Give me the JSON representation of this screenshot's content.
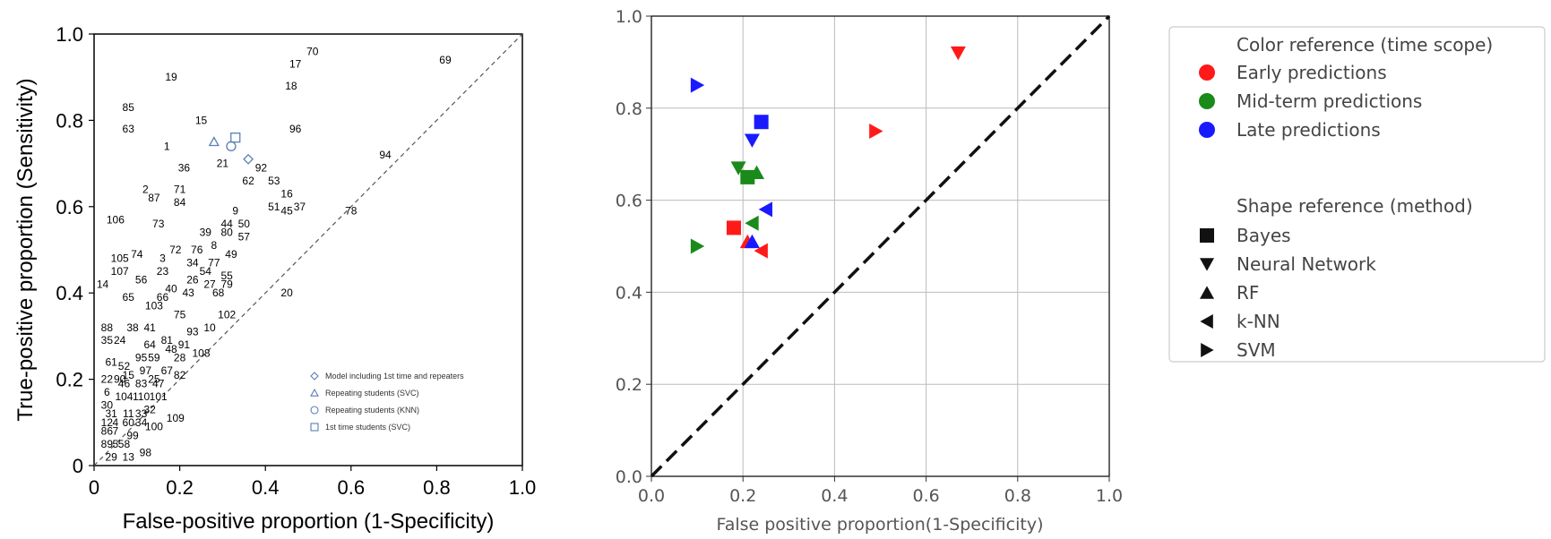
{
  "chart_data": [
    {
      "type": "scatter",
      "title": "",
      "xlabel": "False-positive proportion (1-Specificity)",
      "ylabel": "True-positive proportion (Sensitivity)",
      "xlim": [
        0,
        1.0
      ],
      "ylim": [
        0,
        1.0
      ],
      "xticks": [
        "0",
        "0.2",
        "0.4",
        "0.6",
        "0.8",
        "1.0"
      ],
      "yticks": [
        "0",
        "0.2",
        "0.4",
        "0.6",
        "0.8",
        "1.0"
      ],
      "grid": false,
      "diagonal": "dashed",
      "labeled_points": [
        {
          "label": "70",
          "x": 0.51,
          "y": 0.96
        },
        {
          "label": "17",
          "x": 0.47,
          "y": 0.93
        },
        {
          "label": "69",
          "x": 0.82,
          "y": 0.94
        },
        {
          "label": "19",
          "x": 0.18,
          "y": 0.9
        },
        {
          "label": "18",
          "x": 0.46,
          "y": 0.88
        },
        {
          "label": "85",
          "x": 0.08,
          "y": 0.83
        },
        {
          "label": "15",
          "x": 0.25,
          "y": 0.8
        },
        {
          "label": "63",
          "x": 0.08,
          "y": 0.78
        },
        {
          "label": "96",
          "x": 0.47,
          "y": 0.78
        },
        {
          "label": "1",
          "x": 0.17,
          "y": 0.74
        },
        {
          "label": "94",
          "x": 0.68,
          "y": 0.72
        },
        {
          "label": "21",
          "x": 0.3,
          "y": 0.7
        },
        {
          "label": "36",
          "x": 0.21,
          "y": 0.69
        },
        {
          "label": "92",
          "x": 0.39,
          "y": 0.69
        },
        {
          "label": "62",
          "x": 0.36,
          "y": 0.66
        },
        {
          "label": "53",
          "x": 0.42,
          "y": 0.66
        },
        {
          "label": "2",
          "x": 0.12,
          "y": 0.64
        },
        {
          "label": "87",
          "x": 0.14,
          "y": 0.62
        },
        {
          "label": "71",
          "x": 0.2,
          "y": 0.64
        },
        {
          "label": "16",
          "x": 0.45,
          "y": 0.63
        },
        {
          "label": "84",
          "x": 0.2,
          "y": 0.61
        },
        {
          "label": "51",
          "x": 0.42,
          "y": 0.6
        },
        {
          "label": "45",
          "x": 0.45,
          "y": 0.59
        },
        {
          "label": "37",
          "x": 0.48,
          "y": 0.6
        },
        {
          "label": "78",
          "x": 0.6,
          "y": 0.59
        },
        {
          "label": "9",
          "x": 0.33,
          "y": 0.59
        },
        {
          "label": "106",
          "x": 0.05,
          "y": 0.57
        },
        {
          "label": "44",
          "x": 0.31,
          "y": 0.56
        },
        {
          "label": "50",
          "x": 0.35,
          "y": 0.56
        },
        {
          "label": "73",
          "x": 0.15,
          "y": 0.56
        },
        {
          "label": "39",
          "x": 0.26,
          "y": 0.54
        },
        {
          "label": "80",
          "x": 0.31,
          "y": 0.54
        },
        {
          "label": "57",
          "x": 0.35,
          "y": 0.53
        },
        {
          "label": "72",
          "x": 0.19,
          "y": 0.5
        },
        {
          "label": "76",
          "x": 0.24,
          "y": 0.5
        },
        {
          "label": "8",
          "x": 0.28,
          "y": 0.51
        },
        {
          "label": "49",
          "x": 0.32,
          "y": 0.49
        },
        {
          "label": "105",
          "x": 0.06,
          "y": 0.48
        },
        {
          "label": "74",
          "x": 0.1,
          "y": 0.49
        },
        {
          "label": "3",
          "x": 0.16,
          "y": 0.48
        },
        {
          "label": "34",
          "x": 0.23,
          "y": 0.47
        },
        {
          "label": "77",
          "x": 0.28,
          "y": 0.47
        },
        {
          "label": "107",
          "x": 0.06,
          "y": 0.45
        },
        {
          "label": "23",
          "x": 0.16,
          "y": 0.45
        },
        {
          "label": "54",
          "x": 0.26,
          "y": 0.45
        },
        {
          "label": "55",
          "x": 0.31,
          "y": 0.44
        },
        {
          "label": "56",
          "x": 0.11,
          "y": 0.43
        },
        {
          "label": "26",
          "x": 0.23,
          "y": 0.43
        },
        {
          "label": "27",
          "x": 0.27,
          "y": 0.42
        },
        {
          "label": "79",
          "x": 0.31,
          "y": 0.42
        },
        {
          "label": "14",
          "x": 0.02,
          "y": 0.42
        },
        {
          "label": "40",
          "x": 0.18,
          "y": 0.41
        },
        {
          "label": "43",
          "x": 0.22,
          "y": 0.4
        },
        {
          "label": "68",
          "x": 0.29,
          "y": 0.4
        },
        {
          "label": "20",
          "x": 0.45,
          "y": 0.4
        },
        {
          "label": "65",
          "x": 0.08,
          "y": 0.39
        },
        {
          "label": "66",
          "x": 0.16,
          "y": 0.39
        },
        {
          "label": "103",
          "x": 0.14,
          "y": 0.37
        },
        {
          "label": "75",
          "x": 0.2,
          "y": 0.35
        },
        {
          "label": "102",
          "x": 0.31,
          "y": 0.35
        },
        {
          "label": "88",
          "x": 0.03,
          "y": 0.32
        },
        {
          "label": "38",
          "x": 0.09,
          "y": 0.32
        },
        {
          "label": "41",
          "x": 0.13,
          "y": 0.32
        },
        {
          "label": "93",
          "x": 0.23,
          "y": 0.31
        },
        {
          "label": "10",
          "x": 0.27,
          "y": 0.32
        },
        {
          "label": "35",
          "x": 0.03,
          "y": 0.29
        },
        {
          "label": "24",
          "x": 0.06,
          "y": 0.29
        },
        {
          "label": "64",
          "x": 0.13,
          "y": 0.28
        },
        {
          "label": "81",
          "x": 0.17,
          "y": 0.29
        },
        {
          "label": "48",
          "x": 0.18,
          "y": 0.27
        },
        {
          "label": "91",
          "x": 0.21,
          "y": 0.28
        },
        {
          "label": "108",
          "x": 0.25,
          "y": 0.26
        },
        {
          "label": "95",
          "x": 0.11,
          "y": 0.25
        },
        {
          "label": "59",
          "x": 0.14,
          "y": 0.25
        },
        {
          "label": "28",
          "x": 0.2,
          "y": 0.25
        },
        {
          "label": "61",
          "x": 0.04,
          "y": 0.24
        },
        {
          "label": "52",
          "x": 0.07,
          "y": 0.23
        },
        {
          "label": "97",
          "x": 0.12,
          "y": 0.22
        },
        {
          "label": "67",
          "x": 0.17,
          "y": 0.22
        },
        {
          "label": "82",
          "x": 0.2,
          "y": 0.21
        },
        {
          "label": "22",
          "x": 0.03,
          "y": 0.2
        },
        {
          "label": "90",
          "x": 0.06,
          "y": 0.2
        },
        {
          "label": "15",
          "x": 0.08,
          "y": 0.21
        },
        {
          "label": "46",
          "x": 0.07,
          "y": 0.19
        },
        {
          "label": "83",
          "x": 0.11,
          "y": 0.19
        },
        {
          "label": "25",
          "x": 0.14,
          "y": 0.2
        },
        {
          "label": "47",
          "x": 0.15,
          "y": 0.19
        },
        {
          "label": "6",
          "x": 0.03,
          "y": 0.17
        },
        {
          "label": "104",
          "x": 0.07,
          "y": 0.16
        },
        {
          "label": "110",
          "x": 0.11,
          "y": 0.16
        },
        {
          "label": "101",
          "x": 0.15,
          "y": 0.16
        },
        {
          "label": "30",
          "x": 0.03,
          "y": 0.14
        },
        {
          "label": "32",
          "x": 0.13,
          "y": 0.13
        },
        {
          "label": "31",
          "x": 0.04,
          "y": 0.12
        },
        {
          "label": "11",
          "x": 0.08,
          "y": 0.12
        },
        {
          "label": "33",
          "x": 0.11,
          "y": 0.12
        },
        {
          "label": "109",
          "x": 0.19,
          "y": 0.11
        },
        {
          "label": "12",
          "x": 0.03,
          "y": 0.1
        },
        {
          "label": "4",
          "x": 0.05,
          "y": 0.1
        },
        {
          "label": "60",
          "x": 0.08,
          "y": 0.1
        },
        {
          "label": "34",
          "x": 0.11,
          "y": 0.1
        },
        {
          "label": "100",
          "x": 0.14,
          "y": 0.09
        },
        {
          "label": "86",
          "x": 0.03,
          "y": 0.08
        },
        {
          "label": "7",
          "x": 0.05,
          "y": 0.08
        },
        {
          "label": "99",
          "x": 0.09,
          "y": 0.07
        },
        {
          "label": "89",
          "x": 0.03,
          "y": 0.05
        },
        {
          "label": "5",
          "x": 0.05,
          "y": 0.05
        },
        {
          "label": "58",
          "x": 0.07,
          "y": 0.05
        },
        {
          "label": "98",
          "x": 0.12,
          "y": 0.03
        },
        {
          "label": "29",
          "x": 0.04,
          "y": 0.02
        },
        {
          "label": "13",
          "x": 0.08,
          "y": 0.02
        }
      ],
      "series": [
        {
          "name": "Model including 1st time and repeaters",
          "marker": "diamond",
          "color": "#5b7fb5",
          "x": [
            0.36
          ],
          "y": [
            0.71
          ]
        },
        {
          "name": "Repeating students (SVC)",
          "marker": "triangle",
          "color": "#5b7fb5",
          "x": [
            0.28
          ],
          "y": [
            0.75
          ]
        },
        {
          "name": "Repeating students (KNN)",
          "marker": "circle",
          "color": "#5b7fb5",
          "x": [
            0.32
          ],
          "y": [
            0.74
          ]
        },
        {
          "name": "1st time students (SVC)",
          "marker": "square",
          "color": "#5b7fb5",
          "x": [
            0.33
          ],
          "y": [
            0.76
          ]
        }
      ],
      "legend_position": "bottom-right"
    },
    {
      "type": "scatter",
      "title": "",
      "xlabel": "False positive proportion(1-Specificity)",
      "ylabel": "",
      "xlim": [
        0.0,
        1.0
      ],
      "ylim": [
        0.0,
        1.0
      ],
      "xticks": [
        "0.0",
        "0.2",
        "0.4",
        "0.6",
        "0.8",
        "1.0"
      ],
      "yticks": [
        "0.0",
        "0.2",
        "0.4",
        "0.6",
        "0.8",
        "1.0"
      ],
      "grid": true,
      "diagonal": "dashed",
      "points": [
        {
          "x": 0.67,
          "y": 0.92,
          "time": "early",
          "method": "Neural Network"
        },
        {
          "x": 0.49,
          "y": 0.75,
          "time": "early",
          "method": "SVM"
        },
        {
          "x": 0.18,
          "y": 0.54,
          "time": "early",
          "method": "Bayes"
        },
        {
          "x": 0.21,
          "y": 0.51,
          "time": "early",
          "method": "RF"
        },
        {
          "x": 0.24,
          "y": 0.49,
          "time": "early",
          "method": "k-NN"
        },
        {
          "x": 0.19,
          "y": 0.67,
          "time": "mid",
          "method": "Neural Network"
        },
        {
          "x": 0.21,
          "y": 0.65,
          "time": "mid",
          "method": "Bayes"
        },
        {
          "x": 0.23,
          "y": 0.66,
          "time": "mid",
          "method": "RF"
        },
        {
          "x": 0.22,
          "y": 0.55,
          "time": "mid",
          "method": "k-NN"
        },
        {
          "x": 0.1,
          "y": 0.5,
          "time": "mid",
          "method": "SVM"
        },
        {
          "x": 0.1,
          "y": 0.85,
          "time": "late",
          "method": "SVM"
        },
        {
          "x": 0.24,
          "y": 0.77,
          "time": "late",
          "method": "Bayes"
        },
        {
          "x": 0.22,
          "y": 0.73,
          "time": "late",
          "method": "Neural Network"
        },
        {
          "x": 0.25,
          "y": 0.58,
          "time": "late",
          "method": "k-NN"
        },
        {
          "x": 0.22,
          "y": 0.51,
          "time": "late",
          "method": "RF"
        }
      ],
      "colors": {
        "early": "#ff1a1a",
        "mid": "#1a8a1a",
        "late": "#1a1aff"
      },
      "legend": {
        "color_title": "Color reference (time scope)",
        "colors": [
          {
            "key": "early",
            "label": "Early predictions"
          },
          {
            "key": "mid",
            "label": "Mid-term predictions"
          },
          {
            "key": "late",
            "label": "Late predictions"
          }
        ],
        "shape_title": "Shape reference (method)",
        "shapes": [
          {
            "label": "Bayes",
            "marker": "square"
          },
          {
            "label": "Neural Network",
            "marker": "triangle-down"
          },
          {
            "label": "RF",
            "marker": "triangle-up"
          },
          {
            "label": "k-NN",
            "marker": "triangle-left"
          },
          {
            "label": "SVM",
            "marker": "triangle-right"
          }
        ]
      },
      "legend_position": "outside-right"
    }
  ]
}
